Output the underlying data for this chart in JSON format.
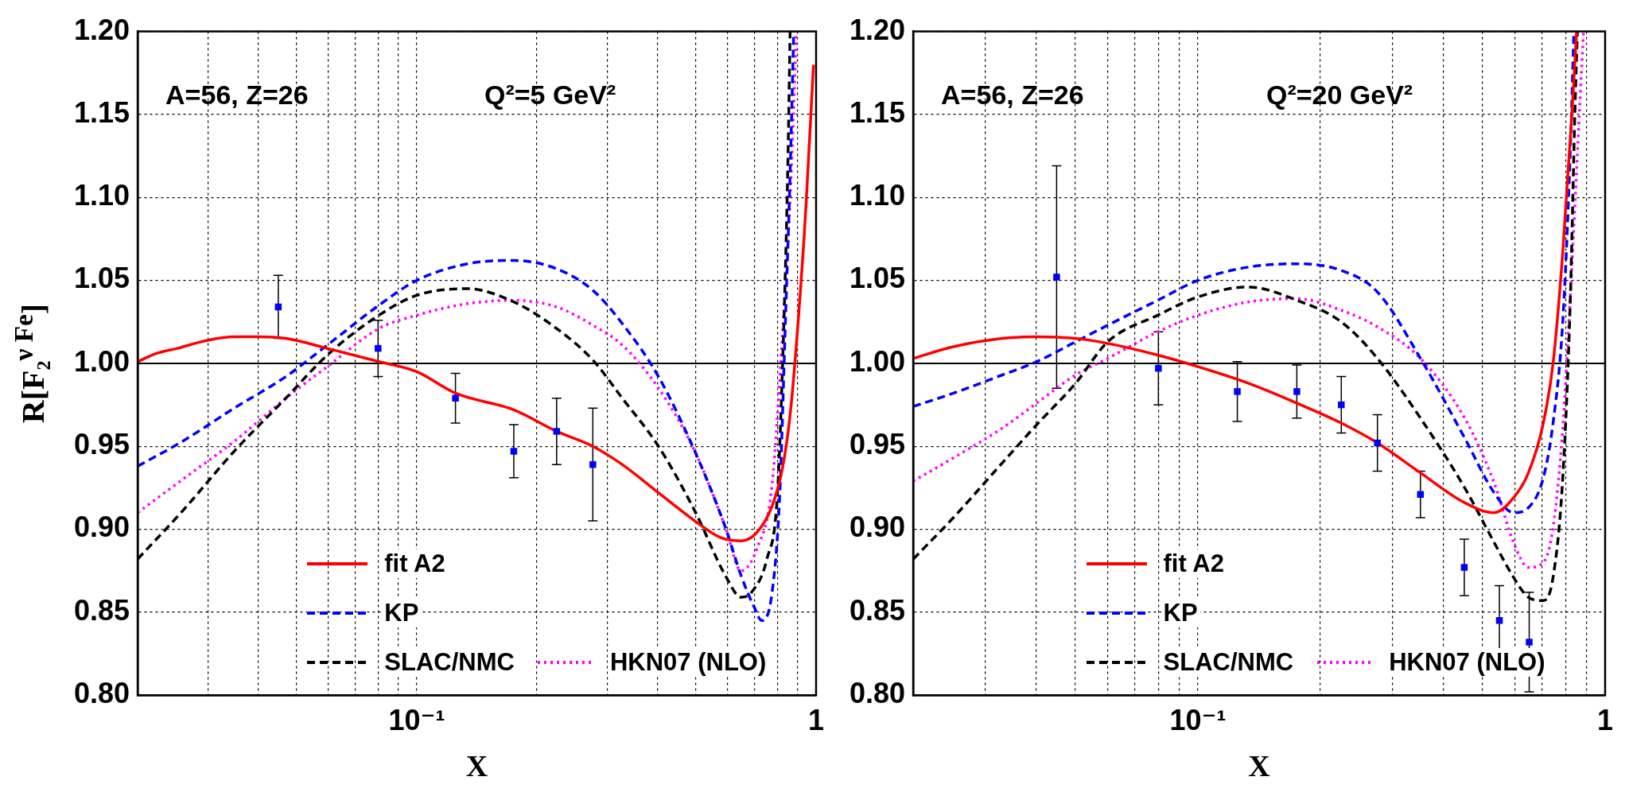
{
  "chart_data": [
    {
      "type": "line",
      "xlabel": "X",
      "ylabel": "R[F₂$^{ν Fe}$]",
      "annotations": [
        "A=56, Z=26",
        "Q²=5 GeV²"
      ],
      "log": "x",
      "xlim": [
        0.02,
        1
      ],
      "ylim": [
        0.8,
        1.2
      ],
      "xticks": [
        {
          "value": 0.02,
          "label": null
        },
        {
          "value": 0.03,
          "label": null
        },
        {
          "value": 0.04,
          "label": null
        },
        {
          "value": 0.05,
          "label": null
        },
        {
          "value": 0.06,
          "label": null
        },
        {
          "value": 0.07,
          "label": null
        },
        {
          "value": 0.08,
          "label": null
        },
        {
          "value": 0.09,
          "label": null
        },
        {
          "value": 0.1,
          "label": "10⁻¹"
        },
        {
          "value": 0.2,
          "label": null
        },
        {
          "value": 0.3,
          "label": null
        },
        {
          "value": 0.4,
          "label": null
        },
        {
          "value": 0.5,
          "label": null
        },
        {
          "value": 0.6,
          "label": null
        },
        {
          "value": 0.7,
          "label": null
        },
        {
          "value": 0.8,
          "label": null
        },
        {
          "value": 0.9,
          "label": null
        },
        {
          "value": 1,
          "label": "1"
        }
      ],
      "yticks": [
        {
          "value": 0.8,
          "label": "0.80"
        },
        {
          "value": 0.85,
          "label": "0.85"
        },
        {
          "value": 0.9,
          "label": "0.90"
        },
        {
          "value": 0.95,
          "label": "0.95"
        },
        {
          "value": 1,
          "label": "1.00"
        },
        {
          "value": 1.05,
          "label": "1.05"
        },
        {
          "value": 1.1,
          "label": "1.10"
        },
        {
          "value": 1.15,
          "label": "1.15"
        },
        {
          "value": 1.2,
          "label": "1.20"
        }
      ],
      "grid": true,
      "legend": "bottom",
      "ref_lines": [
        {
          "axis": "y",
          "value": 1,
          "color": "#000000"
        }
      ],
      "series": [
        {
          "name": "fit A2",
          "color": "#ff0000",
          "line_style": "solid",
          "x": [
            0.02,
            0.0223,
            0.0251,
            0.0301,
            0.0349,
            0.0402,
            0.047,
            0.0597,
            0.0804,
            0.1,
            0.125,
            0.175,
            0.224,
            0.276,
            0.327,
            0.403,
            0.497,
            0.576,
            0.649,
            0.71,
            0.776,
            0.824,
            0.861,
            0.901,
            0.942,
            0.985
          ],
          "values": [
            1.001,
            1.006,
            1.009,
            1.014,
            1.016,
            1.016,
            1.015,
            1.009,
            1.001,
            0.995,
            0.982,
            0.972,
            0.959,
            0.95,
            0.939,
            0.922,
            0.905,
            0.895,
            0.893,
            0.898,
            0.914,
            0.937,
            0.969,
            1.024,
            1.092,
            1.18
          ]
        },
        {
          "name": "KP",
          "color": "#0000ff",
          "line_style": "dashed",
          "x": [
            0.02,
            0.0259,
            0.0349,
            0.047,
            0.0597,
            0.0804,
            0.1,
            0.134,
            0.175,
            0.224,
            0.276,
            0.327,
            0.403,
            0.497,
            0.593,
            0.649,
            0.7,
            0.731,
            0.776,
            0.811,
            0.836,
            0.861,
            0.879
          ],
          "values": [
            0.938,
            0.953,
            0.973,
            0.992,
            1.011,
            1.035,
            1.05,
            1.06,
            1.062,
            1.057,
            1.044,
            1.024,
            0.992,
            0.947,
            0.901,
            0.872,
            0.853,
            0.845,
            0.862,
            0.921,
            1.018,
            1.115,
            1.2
          ]
        },
        {
          "name": "SLAC/NMC",
          "color": "#000000",
          "line_style": "dashed",
          "x": [
            0.02,
            0.0259,
            0.0349,
            0.047,
            0.0597,
            0.0804,
            0.1,
            0.134,
            0.175,
            0.224,
            0.276,
            0.327,
            0.403,
            0.497,
            0.593,
            0.649,
            0.689,
            0.753,
            0.8,
            0.829,
            0.849,
            0.861
          ],
          "values": [
            0.882,
            0.911,
            0.947,
            0.979,
            1.005,
            1.029,
            1.041,
            1.045,
            1.037,
            1.021,
            1.002,
            0.979,
            0.95,
            0.911,
            0.872,
            0.859,
            0.862,
            0.882,
            0.921,
            1.018,
            1.115,
            1.2
          ]
        },
        {
          "name": "HKN07 (NLO)",
          "color": "#ff00ff",
          "line_style": "dotted",
          "x": [
            0.02,
            0.0259,
            0.0349,
            0.047,
            0.0597,
            0.0804,
            0.1,
            0.134,
            0.175,
            0.224,
            0.276,
            0.327,
            0.403,
            0.497,
            0.593,
            0.649,
            0.71,
            0.776,
            0.824,
            0.861,
            0.893
          ],
          "values": [
            0.91,
            0.93,
            0.953,
            0.979,
            0.998,
            1.021,
            1.029,
            1.036,
            1.038,
            1.034,
            1.023,
            1.011,
            0.985,
            0.947,
            0.901,
            0.875,
            0.888,
            0.927,
            1.018,
            1.099,
            1.2
          ]
        },
        {
          "type": "scatter",
          "color": "#0000ff",
          "marker": "square",
          "x": [
            0.045,
            0.08,
            0.125,
            0.175,
            0.224,
            0.276
          ],
          "values": [
            1.034,
            1.009,
            0.979,
            0.947,
            0.959,
            0.939
          ],
          "errors": [
            0.019,
            0.017,
            0.015,
            0.016,
            0.02,
            0.034
          ]
        }
      ]
    },
    {
      "type": "line",
      "xlabel": "X",
      "annotations": [
        "A=56, Z=26",
        "Q²=20 GeV²"
      ],
      "log": "x",
      "xlim": [
        0.02,
        1
      ],
      "ylim": [
        0.8,
        1.2
      ],
      "xticks": [
        {
          "value": 0.02,
          "label": null
        },
        {
          "value": 0.03,
          "label": null
        },
        {
          "value": 0.04,
          "label": null
        },
        {
          "value": 0.05,
          "label": null
        },
        {
          "value": 0.06,
          "label": null
        },
        {
          "value": 0.07,
          "label": null
        },
        {
          "value": 0.08,
          "label": null
        },
        {
          "value": 0.09,
          "label": null
        },
        {
          "value": 0.1,
          "label": "10⁻¹"
        },
        {
          "value": 0.2,
          "label": null
        },
        {
          "value": 0.3,
          "label": null
        },
        {
          "value": 0.4,
          "label": null
        },
        {
          "value": 0.5,
          "label": null
        },
        {
          "value": 0.6,
          "label": null
        },
        {
          "value": 0.7,
          "label": null
        },
        {
          "value": 0.8,
          "label": null
        },
        {
          "value": 0.9,
          "label": null
        },
        {
          "value": 1,
          "label": "1"
        }
      ],
      "yticks": [
        {
          "value": 0.8,
          "label": "0.80"
        },
        {
          "value": 0.85,
          "label": "0.85"
        },
        {
          "value": 0.9,
          "label": "0.90"
        },
        {
          "value": 0.95,
          "label": "0.95"
        },
        {
          "value": 1,
          "label": "1.00"
        },
        {
          "value": 1.05,
          "label": "1.05"
        },
        {
          "value": 1.1,
          "label": "1.10"
        },
        {
          "value": 1.15,
          "label": "1.15"
        },
        {
          "value": 1.2,
          "label": "1.20"
        }
      ],
      "grid": true,
      "legend": "bottom",
      "ref_lines": [
        {
          "axis": "y",
          "value": 1,
          "color": "#000000"
        }
      ],
      "series": [
        {
          "name": "fit A2",
          "color": "#ff0000",
          "line_style": "solid",
          "x": [
            0.02,
            0.0251,
            0.0331,
            0.0402,
            0.0501,
            0.0601,
            0.0797,
            0.1,
            0.133,
            0.175,
            0.225,
            0.276,
            0.352,
            0.452,
            0.534,
            0.596,
            0.648,
            0.705,
            0.745,
            0.787,
            0.832,
            0.851
          ],
          "values": [
            1.003,
            1.01,
            1.015,
            1.016,
            1.015,
            1.012,
            1.005,
            0.998,
            0.988,
            0.976,
            0.964,
            0.952,
            0.934,
            0.916,
            0.91,
            0.919,
            0.934,
            0.964,
            1.0,
            1.067,
            1.157,
            1.2
          ]
        },
        {
          "name": "KP",
          "color": "#0000ff",
          "line_style": "dashed",
          "x": [
            0.02,
            0.0251,
            0.0331,
            0.0402,
            0.0501,
            0.0601,
            0.0797,
            0.1,
            0.133,
            0.175,
            0.225,
            0.276,
            0.352,
            0.452,
            0.534,
            0.596,
            0.648,
            0.705,
            0.745,
            0.787,
            0.821,
            0.838
          ],
          "values": [
            0.974,
            0.982,
            0.993,
            1.001,
            1.013,
            1.023,
            1.038,
            1.05,
            1.058,
            1.06,
            1.056,
            1.043,
            1.003,
            0.955,
            0.922,
            0.91,
            0.913,
            0.931,
            0.964,
            1.025,
            1.127,
            1.2
          ]
        },
        {
          "name": "SLAC/NMC",
          "color": "#000000",
          "line_style": "dashed",
          "x": [
            0.02,
            0.0251,
            0.0331,
            0.0402,
            0.0501,
            0.0601,
            0.0797,
            0.1,
            0.133,
            0.175,
            0.225,
            0.276,
            0.352,
            0.452,
            0.534,
            0.596,
            0.648,
            0.705,
            0.745,
            0.787,
            0.821,
            0.844,
            0.855
          ],
          "values": [
            0.882,
            0.907,
            0.94,
            0.963,
            0.988,
            1.013,
            1.029,
            1.04,
            1.046,
            1.038,
            1.025,
            1.003,
            0.967,
            0.925,
            0.892,
            0.871,
            0.859,
            0.857,
            0.871,
            0.931,
            1.037,
            1.157,
            1.2
          ]
        },
        {
          "name": "HKN07 (NLO)",
          "color": "#ff00ff",
          "line_style": "dotted",
          "x": [
            0.02,
            0.0251,
            0.0331,
            0.0402,
            0.0501,
            0.0601,
            0.0797,
            0.1,
            0.133,
            0.175,
            0.225,
            0.276,
            0.352,
            0.452,
            0.534,
            0.596,
            0.648,
            0.705,
            0.745,
            0.787,
            0.832,
            0.867,
            0.885
          ],
          "values": [
            0.929,
            0.943,
            0.961,
            0.976,
            0.993,
            1.003,
            1.019,
            1.029,
            1.037,
            1.039,
            1.032,
            1.022,
            1.003,
            0.967,
            0.928,
            0.892,
            0.877,
            0.88,
            0.901,
            0.961,
            1.067,
            1.157,
            1.2
          ]
        },
        {
          "type": "scatter",
          "color": "#0000ff",
          "marker": "square",
          "x": [
            0.045,
            0.08,
            0.125,
            0.175,
            0.225,
            0.276,
            0.352,
            0.451,
            0.55,
            0.651
          ],
          "values": [
            1.052,
            0.997,
            0.983,
            0.983,
            0.975,
            0.952,
            0.921,
            0.877,
            0.845,
            0.832
          ],
          "errors": [
            0.067,
            0.022,
            0.018,
            0.016,
            0.017,
            0.017,
            0.014,
            0.017,
            0.021,
            0.03
          ]
        }
      ]
    }
  ]
}
